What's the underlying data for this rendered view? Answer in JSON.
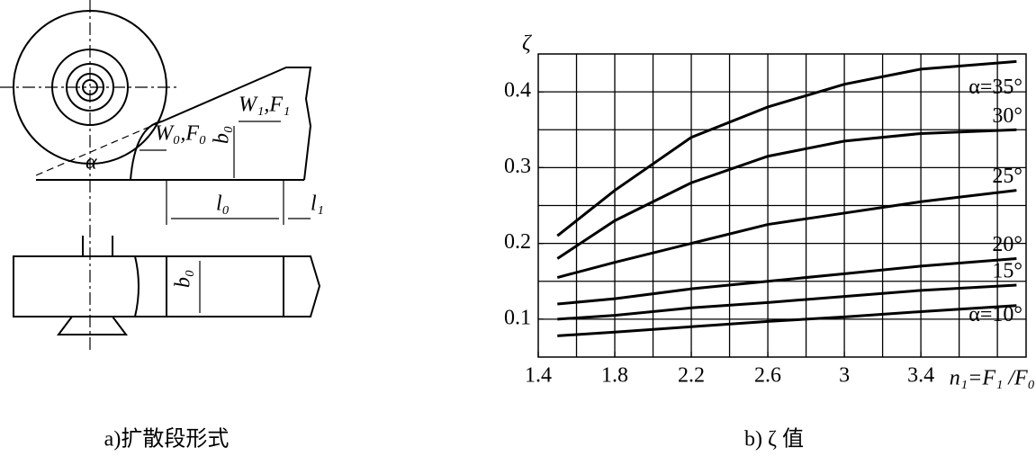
{
  "diagram": {
    "caption": "a)扩散段形式",
    "alpha": "α",
    "inlet": "W₀,F₀",
    "outlet": "W₁,F₁",
    "height": "b₀",
    "length0": "l₀",
    "length1": "l₁",
    "width": "b₀"
  },
  "chart_data": {
    "type": "line",
    "caption": "b) ζ 值",
    "y_label": "ζ",
    "x_label": "n₁=F₁ /F₀",
    "x": [
      1.5,
      1.8,
      2.2,
      2.6,
      3.0,
      3.4,
      3.9
    ],
    "series": [
      {
        "name": "α=35°",
        "color": "#000000",
        "values": [
          0.21,
          0.27,
          0.34,
          0.38,
          0.41,
          0.43,
          0.44
        ]
      },
      {
        "name": "30°",
        "color": "#000000",
        "values": [
          0.18,
          0.23,
          0.28,
          0.315,
          0.335,
          0.345,
          0.35
        ]
      },
      {
        "name": "25°",
        "color": "#000000",
        "values": [
          0.155,
          0.175,
          0.2,
          0.225,
          0.24,
          0.255,
          0.27
        ]
      },
      {
        "name": "20°",
        "color": "#000000",
        "values": [
          0.12,
          0.127,
          0.14,
          0.15,
          0.16,
          0.17,
          0.18
        ]
      },
      {
        "name": "15°",
        "color": "#000000",
        "values": [
          0.1,
          0.105,
          0.115,
          0.122,
          0.13,
          0.138,
          0.145
        ]
      },
      {
        "name": "α=10°",
        "color": "#000000",
        "values": [
          0.078,
          0.083,
          0.09,
          0.097,
          0.103,
          0.11,
          0.118
        ]
      }
    ],
    "xlim": [
      1.4,
      3.95
    ],
    "ylim": [
      0.05,
      0.45
    ],
    "xticks": [
      1.4,
      1.8,
      2.2,
      2.6,
      3.0,
      3.4
    ],
    "yticks": [
      0.1,
      0.2,
      0.3,
      0.4
    ],
    "xgrid": [
      1.6,
      1.8,
      2.0,
      2.2,
      2.4,
      2.6,
      2.8,
      3.0,
      3.2,
      3.4,
      3.6,
      3.8
    ],
    "ygrid": [
      0.1,
      0.15,
      0.2,
      0.25,
      0.3,
      0.35,
      0.4
    ],
    "grid": true
  }
}
